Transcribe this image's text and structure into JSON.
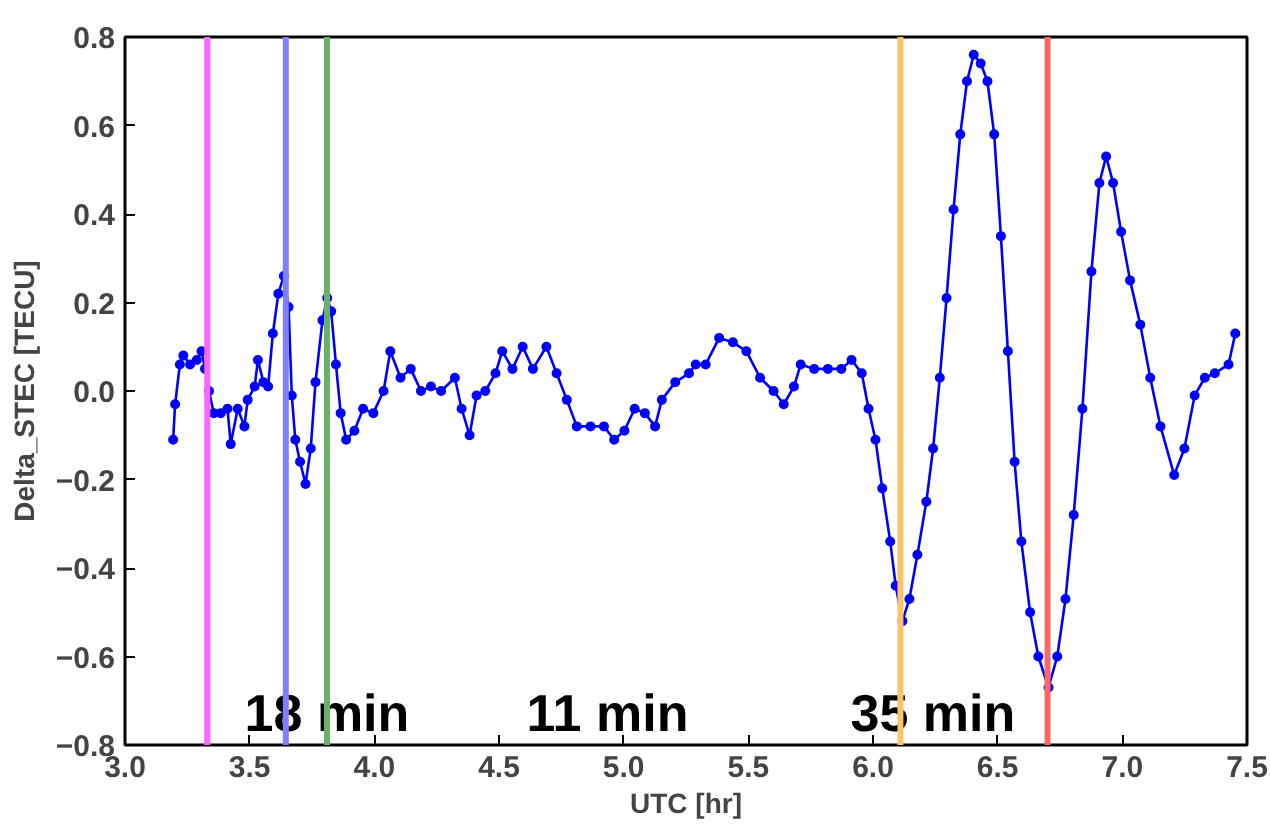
{
  "chart_data": {
    "type": "line",
    "xlabel": "UTC [hr]",
    "ylabel": "Delta_STEC [TECU]",
    "xlim": [
      3.0,
      7.5
    ],
    "ylim": [
      -0.8,
      0.8
    ],
    "xticks": [
      {
        "value": 3,
        "label": "3.0"
      },
      3.5,
      {
        "value": 4,
        "label": "4.0"
      },
      4.5,
      {
        "value": 5,
        "label": "5.0"
      },
      5.5,
      {
        "value": 6,
        "label": "6.0"
      },
      6.5,
      {
        "value": 7,
        "label": "7.0"
      },
      7.5
    ],
    "yticks": [
      -0.8,
      -0.6,
      -0.4,
      -0.2,
      {
        "value": 0,
        "label": "0.0"
      },
      0.2,
      0.4,
      0.6,
      0.8
    ],
    "grid": false,
    "marker": "circle",
    "line_style": "solid",
    "series": [
      {
        "color": "#0000ff",
        "x": [
          3.193,
          3.201,
          3.22,
          3.234,
          3.261,
          3.288,
          3.307,
          3.321,
          3.337,
          3.356,
          3.384,
          3.411,
          3.424,
          3.452,
          3.479,
          3.492,
          3.52,
          3.533,
          3.555,
          3.574,
          3.593,
          3.615,
          3.637,
          3.656,
          3.669,
          3.683,
          3.702,
          3.724,
          3.745,
          3.764,
          3.792,
          3.811,
          3.827,
          3.846,
          3.865,
          3.887,
          3.92,
          3.955,
          3.996,
          4.037,
          4.064,
          4.105,
          4.146,
          4.187,
          4.227,
          4.268,
          4.323,
          4.35,
          4.382,
          4.41,
          4.445,
          4.486,
          4.513,
          4.554,
          4.595,
          4.636,
          4.69,
          4.731,
          4.772,
          4.812,
          4.867,
          4.921,
          4.962,
          5.003,
          5.044,
          5.085,
          5.126,
          5.153,
          5.207,
          5.262,
          5.289,
          5.329,
          5.383,
          5.438,
          5.492,
          5.547,
          5.601,
          5.642,
          5.683,
          5.71,
          5.764,
          5.819,
          5.873,
          5.914,
          5.955,
          5.982,
          6.01,
          6.037,
          6.069,
          6.091,
          6.118,
          6.146,
          6.178,
          6.214,
          6.241,
          6.268,
          6.295,
          6.323,
          6.35,
          6.377,
          6.404,
          6.432,
          6.459,
          6.486,
          6.513,
          6.541,
          6.568,
          6.595,
          6.63,
          6.663,
          6.704,
          6.739,
          6.772,
          6.805,
          6.84,
          6.876,
          6.908,
          6.935,
          6.963,
          6.995,
          7.031,
          7.072,
          7.112,
          7.153,
          7.208,
          7.249,
          7.29,
          7.331,
          7.371,
          7.426,
          7.453
        ],
        "values": [
          -0.11,
          -0.03,
          0.06,
          0.08,
          0.06,
          0.07,
          0.09,
          0.05,
          0.0,
          -0.05,
          -0.05,
          -0.04,
          -0.12,
          -0.04,
          -0.08,
          -0.02,
          0.01,
          0.07,
          0.02,
          0.01,
          0.13,
          0.22,
          0.26,
          0.19,
          -0.01,
          -0.11,
          -0.16,
          -0.21,
          -0.13,
          0.02,
          0.16,
          0.21,
          0.18,
          0.06,
          -0.05,
          -0.11,
          -0.09,
          -0.04,
          -0.05,
          0.0,
          0.09,
          0.03,
          0.05,
          0.0,
          0.01,
          0.0,
          0.03,
          -0.04,
          -0.1,
          -0.01,
          0.0,
          0.04,
          0.09,
          0.05,
          0.1,
          0.05,
          0.1,
          0.04,
          -0.02,
          -0.08,
          -0.08,
          -0.08,
          -0.11,
          -0.09,
          -0.04,
          -0.05,
          -0.08,
          -0.02,
          0.02,
          0.04,
          0.06,
          0.06,
          0.12,
          0.11,
          0.09,
          0.03,
          0.0,
          -0.03,
          0.01,
          0.06,
          0.05,
          0.05,
          0.05,
          0.07,
          0.04,
          -0.04,
          -0.11,
          -0.22,
          -0.34,
          -0.44,
          -0.52,
          -0.47,
          -0.37,
          -0.25,
          -0.13,
          0.03,
          0.21,
          0.41,
          0.58,
          0.7,
          0.76,
          0.74,
          0.7,
          0.58,
          0.35,
          0.09,
          -0.16,
          -0.34,
          -0.5,
          -0.6,
          -0.67,
          -0.6,
          -0.47,
          -0.28,
          -0.04,
          0.27,
          0.47,
          0.53,
          0.47,
          0.36,
          0.25,
          0.15,
          0.03,
          -0.08,
          -0.19,
          -0.13,
          -0.01,
          0.03,
          0.04,
          0.06,
          0.13
        ]
      }
    ],
    "ref_lines": [
      {
        "axis": "x",
        "value": 3.33,
        "color": "#ff66ff"
      },
      {
        "axis": "x",
        "value": 3.645,
        "color": "#8080ff"
      },
      {
        "axis": "x",
        "value": 3.81,
        "color": "#66b266"
      },
      {
        "axis": "x",
        "value": 6.11,
        "color": "#ffc266"
      },
      {
        "axis": "x",
        "value": 6.7,
        "color": "#ff6666"
      }
    ],
    "annotations": [
      "18 min",
      "11 min",
      "35 min"
    ]
  }
}
